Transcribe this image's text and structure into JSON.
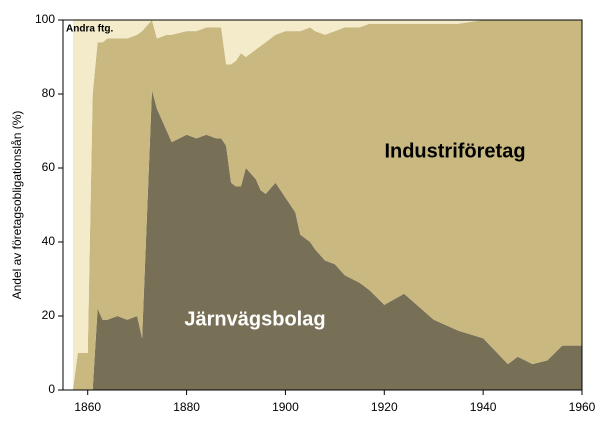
{
  "chart_data": {
    "type": "stacked_area",
    "y_label": "Andel av företagsobligationslån (%)",
    "x": [
      1857,
      1858,
      1860,
      1861,
      1862,
      1863,
      1864,
      1866,
      1868,
      1870,
      1871,
      1873,
      1874,
      1876,
      1877,
      1880,
      1882,
      1884,
      1886,
      1887,
      1888,
      1889,
      1890,
      1891,
      1892,
      1894,
      1895,
      1896,
      1898,
      1900,
      1901,
      1902,
      1903,
      1905,
      1906,
      1908,
      1910,
      1912,
      1915,
      1917,
      1920,
      1924,
      1930,
      1935,
      1940,
      1945,
      1947,
      1950,
      1953,
      1956,
      1960
    ],
    "series": [
      {
        "name": "Järnvägsbolag",
        "color": "#776f56",
        "values": [
          0,
          0,
          0,
          0,
          22,
          19,
          19,
          20,
          19,
          20,
          14,
          81,
          76,
          70,
          67,
          69,
          68,
          69,
          68,
          68,
          66,
          56,
          55,
          55,
          60,
          57,
          54,
          53,
          56,
          52,
          50,
          48,
          42,
          40,
          38,
          35,
          34,
          31,
          29,
          27,
          23,
          26,
          19,
          16,
          14,
          7,
          9,
          7,
          8,
          12,
          12
        ]
      },
      {
        "name": "Industriföretag",
        "color": "#c9b981",
        "values": [
          0,
          10,
          10,
          80,
          72,
          75,
          76,
          75,
          76,
          76,
          83,
          19,
          19,
          26,
          29,
          28,
          29,
          29,
          30,
          30,
          22,
          32,
          34,
          36,
          30,
          35,
          39,
          41,
          40,
          45,
          47,
          49,
          55,
          58,
          59,
          61,
          63,
          67,
          69,
          72,
          76,
          73,
          80,
          83,
          86,
          93,
          91,
          93,
          92,
          88,
          88
        ]
      },
      {
        "name": "Andra ftg.",
        "color": "#f3ebca",
        "values": [
          100,
          90,
          90,
          20,
          6,
          6,
          5,
          5,
          5,
          4,
          3,
          0,
          5,
          4,
          4,
          3,
          3,
          2,
          2,
          2,
          12,
          12,
          11,
          9,
          10,
          8,
          7,
          6,
          4,
          3,
          3,
          3,
          3,
          2,
          3,
          4,
          3,
          2,
          2,
          1,
          1,
          1,
          1,
          1,
          0,
          0,
          0,
          0,
          0,
          0,
          0
        ]
      }
    ],
    "xlim": [
      1855,
      1960
    ],
    "xticks": [
      1860,
      1880,
      1900,
      1920,
      1940,
      1960
    ],
    "ylim": [
      0,
      100
    ],
    "yticks": [
      0,
      20,
      40,
      60,
      80,
      100
    ]
  }
}
